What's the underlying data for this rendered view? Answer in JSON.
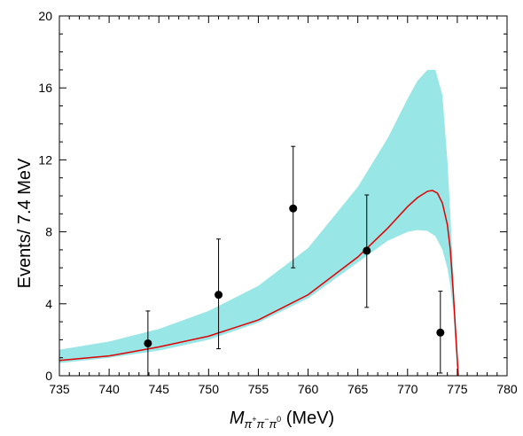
{
  "chart_data": {
    "type": "line",
    "xlabel": {
      "symbol": "M",
      "subscript": "π",
      "sub_sup1": "+",
      "sub_mid": "π",
      "sub_sup2": "−",
      "sub_end": "π",
      "sub_sup3": "0",
      "unit": " (MeV)"
    },
    "ylabel": "Events/ 7.4 MeV",
    "xlim": [
      735,
      780
    ],
    "ylim": [
      0,
      20
    ],
    "x_ticks": [
      "735",
      "740",
      "745",
      "750",
      "755",
      "760",
      "765",
      "770",
      "775",
      "780"
    ],
    "y_ticks": [
      "0",
      "4",
      "8",
      "12",
      "16",
      "20"
    ],
    "grid": false,
    "colors": {
      "band": "#99e6e6",
      "curve": "#e00000",
      "points": "#000000",
      "axes": "#000000"
    },
    "series": [
      {
        "kind": "band",
        "x": [
          735,
          740,
          745,
          750,
          755,
          760,
          765,
          768,
          770,
          771,
          772,
          772.8,
          773.5,
          774.0,
          774.3,
          774.6,
          775.0
        ],
        "upper": [
          1.45,
          1.9,
          2.6,
          3.6,
          5.0,
          7.1,
          10.5,
          13.2,
          15.4,
          16.4,
          17.0,
          17.0,
          15.6,
          12.0,
          9.0,
          5.5,
          0.0
        ],
        "lower": [
          0.7,
          1.0,
          1.4,
          2.0,
          2.95,
          4.3,
          6.3,
          7.5,
          8.0,
          8.1,
          8.05,
          7.75,
          7.0,
          6.0,
          5.0,
          3.6,
          0.0
        ]
      },
      {
        "kind": "curve",
        "x": [
          735,
          740,
          745,
          750,
          755,
          760,
          765,
          768,
          770,
          771,
          772,
          772.5,
          773.0,
          773.5,
          774.0,
          774.3,
          774.6,
          774.9,
          775.1
        ],
        "y": [
          0.85,
          1.1,
          1.6,
          2.2,
          3.1,
          4.5,
          6.6,
          8.2,
          9.4,
          9.9,
          10.25,
          10.3,
          10.15,
          9.6,
          8.4,
          7.0,
          4.6,
          1.8,
          0.0
        ]
      },
      {
        "kind": "points",
        "x": [
          743.9,
          751.0,
          758.5,
          765.9,
          773.3
        ],
        "y": [
          1.8,
          4.5,
          9.3,
          6.95,
          2.4
        ],
        "err_low": [
          1.8,
          3.0,
          3.3,
          3.15,
          2.25
        ],
        "err_high": [
          1.8,
          3.1,
          3.45,
          3.1,
          2.3
        ]
      }
    ]
  }
}
